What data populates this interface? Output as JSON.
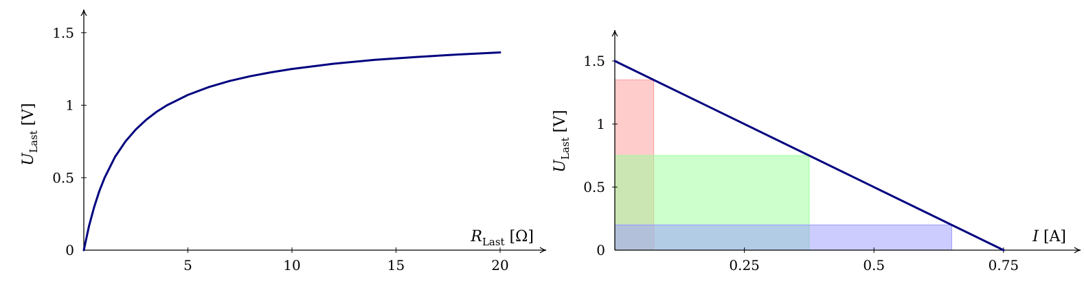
{
  "chart_data": [
    {
      "type": "line",
      "xlabel": {
        "symbol": "R",
        "subscript": "Last",
        "unit": "[Ω]"
      },
      "ylabel": {
        "symbol": "U",
        "subscript": "Last",
        "unit": "[V]"
      },
      "xlim": [
        0,
        22
      ],
      "ylim": [
        0,
        1.65
      ],
      "xticks": [
        5,
        10,
        15,
        20
      ],
      "xtick_labels": [
        "5",
        "10",
        "15",
        "20"
      ],
      "yticks": [
        0,
        0.5,
        1,
        1.5
      ],
      "ytick_labels": [
        "0",
        "0.5",
        "1",
        "1.5"
      ],
      "grid": false,
      "series": [
        {
          "color": "#00007f",
          "x": [
            0,
            0.25,
            0.5,
            0.75,
            1,
            1.5,
            2,
            2.5,
            3,
            3.5,
            4,
            5,
            6,
            7,
            8,
            9,
            10,
            12,
            14,
            16,
            18,
            20
          ],
          "y": [
            0,
            0.167,
            0.3,
            0.409,
            0.5,
            0.643,
            0.75,
            0.833,
            0.9,
            0.955,
            1.0,
            1.071,
            1.125,
            1.167,
            1.2,
            1.227,
            1.25,
            1.286,
            1.313,
            1.333,
            1.35,
            1.364
          ]
        }
      ]
    },
    {
      "type": "line",
      "xlabel": {
        "symbol": "I",
        "subscript": "",
        "unit": "[A]"
      },
      "ylabel": {
        "symbol": "U",
        "subscript": "Last",
        "unit": "[V]"
      },
      "xlim": [
        0,
        0.86
      ],
      "ylim": [
        0,
        1.9
      ],
      "xticks": [
        0.25,
        0.5,
        0.75
      ],
      "xtick_labels": [
        "0.25",
        "0.5",
        "0.75"
      ],
      "yticks": [
        0,
        0.5,
        1,
        1.5
      ],
      "ytick_labels": [
        "0",
        "0.5",
        "1",
        "1.5"
      ],
      "grid": false,
      "series": [
        {
          "color": "#00007f",
          "x": [
            0,
            0.75
          ],
          "y": [
            1.5,
            0
          ]
        }
      ],
      "regions": [
        {
          "color": "#ff9999",
          "x": [
            0,
            0.075
          ],
          "y": [
            0,
            1.35
          ]
        },
        {
          "color": "#99ff99",
          "x": [
            0,
            0.375
          ],
          "y": [
            0,
            0.75
          ]
        },
        {
          "color": "#9999ff",
          "x": [
            0,
            0.65
          ],
          "y": [
            0,
            0.2
          ]
        }
      ]
    }
  ]
}
